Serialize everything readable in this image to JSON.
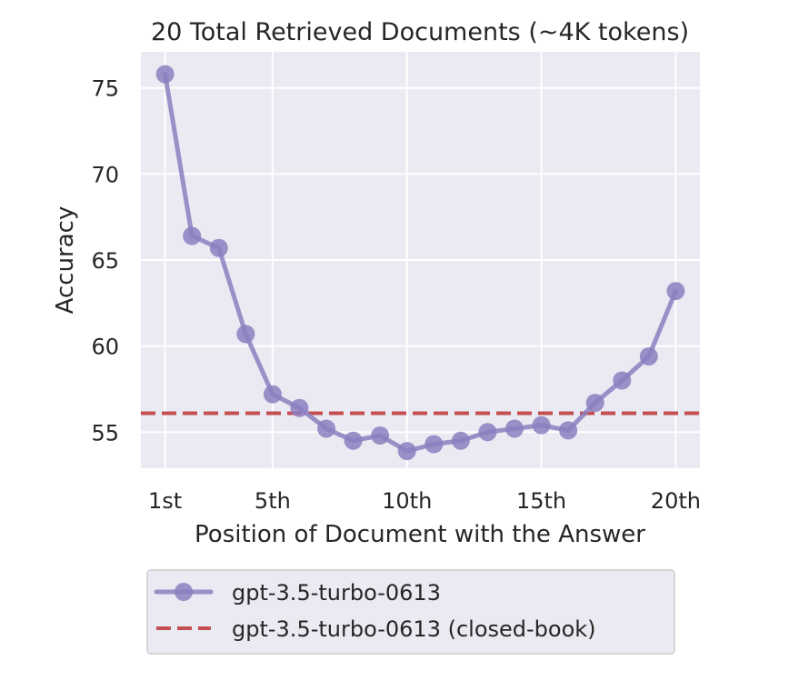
{
  "chart_data": {
    "type": "line",
    "title": "20 Total Retrieved Documents (~4K tokens)",
    "xlabel": "Position of Document with the Answer",
    "ylabel": "Accuracy",
    "x": [
      1,
      2,
      3,
      4,
      5,
      6,
      7,
      8,
      9,
      10,
      11,
      12,
      13,
      14,
      15,
      16,
      17,
      18,
      19,
      20
    ],
    "xticks": [
      1,
      5,
      10,
      15,
      20
    ],
    "xtick_labels": [
      "1st",
      "5th",
      "10th",
      "15th",
      "20th"
    ],
    "yticks": [
      55,
      60,
      65,
      70,
      75
    ],
    "xlim": [
      0.1,
      20.9
    ],
    "ylim": [
      52.9,
      77.1
    ],
    "grid": true,
    "legend_position": "below",
    "series": [
      {
        "name": "gpt-3.5-turbo-0613",
        "style": "solid-line-circle-markers",
        "color": "#8c7fc0",
        "values": [
          75.8,
          66.4,
          65.7,
          60.7,
          57.2,
          56.4,
          55.2,
          54.5,
          54.8,
          53.9,
          54.3,
          54.5,
          55.0,
          55.2,
          55.4,
          55.1,
          56.7,
          58.0,
          59.4,
          63.2
        ]
      },
      {
        "name": "gpt-3.5-turbo-0613 (closed-book)",
        "style": "dashed-horizontal",
        "color": "#c44e52",
        "value": 56.1
      }
    ]
  },
  "colors": {
    "plot_background": "#eaeaf2",
    "grid": "#ffffff",
    "text": "#262626"
  }
}
